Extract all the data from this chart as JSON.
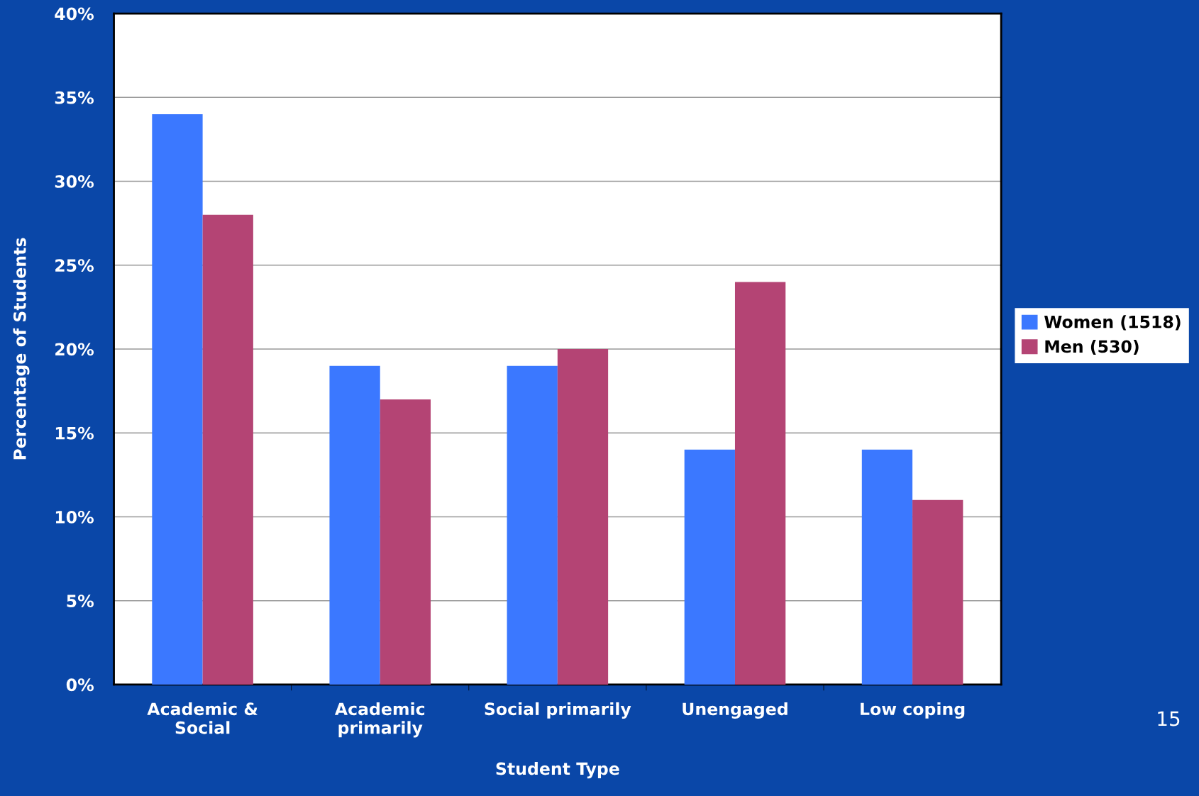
{
  "chart_data": {
    "type": "bar",
    "xlabel": "Student Type",
    "ylabel": "Percentage of Students",
    "categories": [
      "Academic &\nSocial",
      "Academic\nprimarily",
      "Social primarily",
      "Unengaged",
      "Low coping"
    ],
    "series": [
      {
        "name": "Women (1518)",
        "color": "#3b78ff",
        "values": [
          34,
          19,
          19,
          14,
          14
        ]
      },
      {
        "name": "Men (530)",
        "color": "#b44474",
        "values": [
          28,
          17,
          20,
          24,
          11
        ]
      }
    ],
    "ylim": [
      0,
      40
    ],
    "yticks": [
      {
        "value": 0,
        "label": "0%"
      },
      {
        "value": 5,
        "label": "5%"
      },
      {
        "value": 10,
        "label": "10%"
      },
      {
        "value": 15,
        "label": "15%"
      },
      {
        "value": 20,
        "label": "20%"
      },
      {
        "value": 25,
        "label": "25%"
      },
      {
        "value": 30,
        "label": "30%"
      },
      {
        "value": 35,
        "label": "35%"
      },
      {
        "value": 40,
        "label": "40%"
      }
    ],
    "grid": "y",
    "legend": "right",
    "annotations": [
      "15"
    ]
  }
}
